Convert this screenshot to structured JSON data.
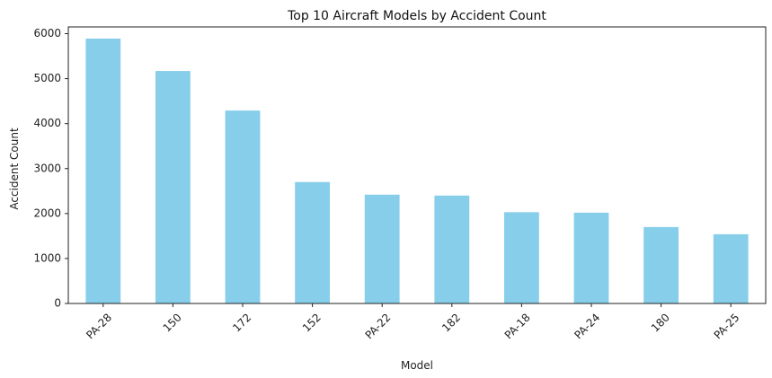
{
  "chart_data": {
    "type": "bar",
    "title": "Top 10 Aircraft Models by Accident Count",
    "xlabel": "Model",
    "ylabel": "Accident Count",
    "categories": [
      "PA-28",
      "150",
      "172",
      "152",
      "PA-22",
      "182",
      "PA-18",
      "PA-24",
      "180",
      "PA-25"
    ],
    "values": [
      5890,
      5170,
      4290,
      2700,
      2420,
      2400,
      2030,
      2020,
      1700,
      1540
    ],
    "ylim": [
      0,
      6150
    ],
    "yticks": [
      0,
      1000,
      2000,
      3000,
      4000,
      5000,
      6000
    ],
    "bar_color": "#87ceeb",
    "grid": false,
    "legend": "none"
  }
}
